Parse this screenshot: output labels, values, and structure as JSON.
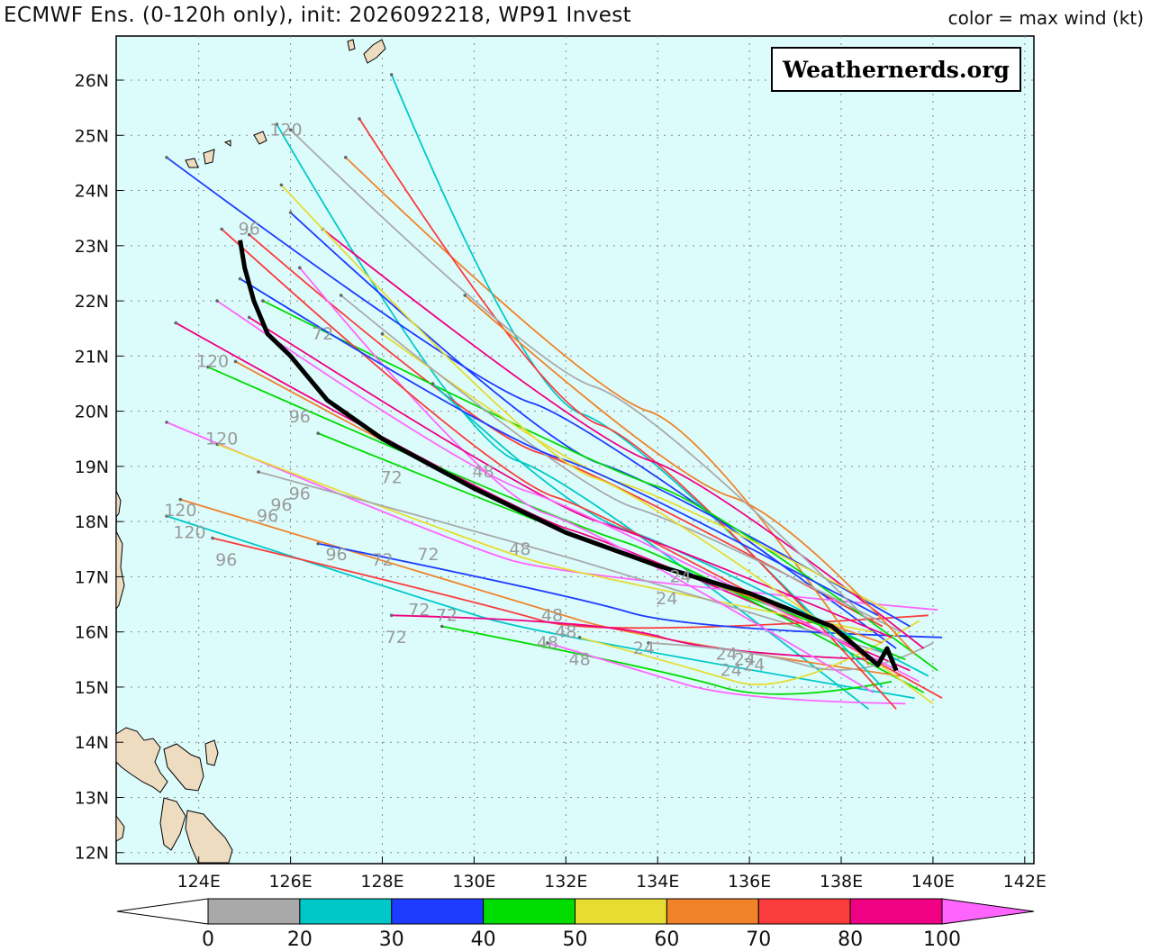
{
  "header": {
    "title": "ECMWF Ens. (0-120h only), init: 2026092218, WP91 Invest",
    "color_note": "color = max wind (kt)"
  },
  "credit": "Weathernerds.org",
  "chart_data": {
    "type": "track-map",
    "lon_range": [
      122.2,
      142.2
    ],
    "lat_range": [
      11.8,
      26.8
    ],
    "lon_ticks": [
      "124E",
      "126E",
      "128E",
      "130E",
      "132E",
      "134E",
      "136E",
      "138E",
      "140E",
      "142E"
    ],
    "lat_ticks": [
      "12N",
      "13N",
      "14N",
      "15N",
      "16N",
      "17N",
      "18N",
      "19N",
      "20N",
      "21N",
      "22N",
      "23N",
      "24N",
      "25N",
      "26N"
    ],
    "legend": {
      "labels": [
        "0",
        "20",
        "30",
        "40",
        "50",
        "60",
        "70",
        "80",
        "100"
      ],
      "colors": [
        "#a9a9a9",
        "#00c8c8",
        "#1e3cff",
        "#00dc00",
        "#e6dc32",
        "#f08228",
        "#fa3c3c",
        "#f00082",
        "#ff64ff"
      ]
    },
    "mean_track": [
      [
        139.2,
        15.3
      ],
      [
        139.0,
        15.7
      ],
      [
        138.8,
        15.4
      ],
      [
        137.8,
        16.1
      ],
      [
        136.0,
        16.7
      ],
      [
        134.0,
        17.2
      ],
      [
        132.0,
        17.8
      ],
      [
        130.0,
        18.6
      ],
      [
        128.0,
        19.5
      ],
      [
        126.8,
        20.2
      ],
      [
        126.0,
        21.0
      ],
      [
        125.5,
        21.4
      ],
      [
        125.2,
        22.0
      ],
      [
        125.0,
        22.6
      ],
      [
        124.9,
        23.1
      ]
    ],
    "hour_labels": [
      {
        "t": "120",
        "lon": 125.9,
        "lat": 25.0
      },
      {
        "t": "96",
        "lon": 125.1,
        "lat": 23.2
      },
      {
        "t": "72",
        "lon": 126.7,
        "lat": 21.3
      },
      {
        "t": "120",
        "lon": 124.3,
        "lat": 20.8
      },
      {
        "t": "96",
        "lon": 126.2,
        "lat": 19.8
      },
      {
        "t": "120",
        "lon": 124.5,
        "lat": 19.4
      },
      {
        "t": "72",
        "lon": 128.2,
        "lat": 18.7
      },
      {
        "t": "48",
        "lon": 130.2,
        "lat": 18.8
      },
      {
        "t": "96",
        "lon": 126.2,
        "lat": 18.4
      },
      {
        "t": "96",
        "lon": 125.5,
        "lat": 18.0
      },
      {
        "t": "96",
        "lon": 125.8,
        "lat": 18.2
      },
      {
        "t": "120",
        "lon": 123.6,
        "lat": 18.1
      },
      {
        "t": "120",
        "lon": 123.8,
        "lat": 17.7
      },
      {
        "t": "96",
        "lon": 124.6,
        "lat": 17.2
      },
      {
        "t": "96",
        "lon": 127.0,
        "lat": 17.3
      },
      {
        "t": "72",
        "lon": 128.0,
        "lat": 17.2
      },
      {
        "t": "72",
        "lon": 129.0,
        "lat": 17.3
      },
      {
        "t": "48",
        "lon": 131.0,
        "lat": 17.4
      },
      {
        "t": "72",
        "lon": 128.8,
        "lat": 16.3
      },
      {
        "t": "72",
        "lon": 129.4,
        "lat": 16.2
      },
      {
        "t": "72",
        "lon": 128.3,
        "lat": 15.8
      },
      {
        "t": "48",
        "lon": 131.7,
        "lat": 16.2
      },
      {
        "t": "48",
        "lon": 132.0,
        "lat": 15.9
      },
      {
        "t": "48",
        "lon": 131.6,
        "lat": 15.7
      },
      {
        "t": "48",
        "lon": 132.3,
        "lat": 15.4
      },
      {
        "t": "24",
        "lon": 134.5,
        "lat": 16.9
      },
      {
        "t": "24",
        "lon": 134.2,
        "lat": 16.5
      },
      {
        "t": "24",
        "lon": 133.7,
        "lat": 15.6
      },
      {
        "t": "24",
        "lon": 135.5,
        "lat": 15.5
      },
      {
        "t": "24",
        "lon": 135.6,
        "lat": 15.2
      },
      {
        "t": "24",
        "lon": 136.1,
        "lat": 15.3
      },
      {
        "t": "24",
        "lon": 135.9,
        "lat": 15.4
      }
    ]
  }
}
